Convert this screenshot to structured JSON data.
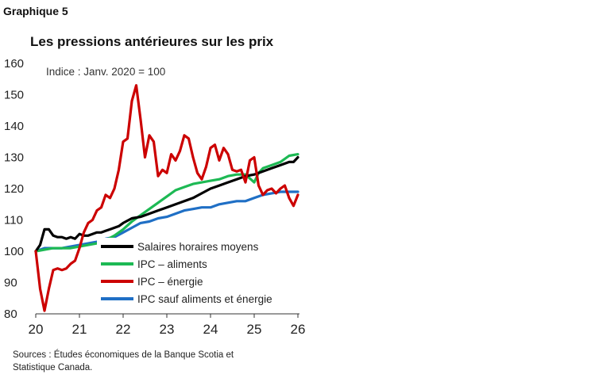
{
  "header": {
    "graph_label": "Graphique 5",
    "title": "Les pressions antérieures sur les prix"
  },
  "source_note": "Sources : Études économiques de la Banque Scotia et Statistique Canada.",
  "chart_data": {
    "type": "line",
    "title": "Les pressions antérieures sur les prix",
    "ylabel": "Indice : Janv. 2020 = 100",
    "ylim": [
      80,
      160
    ],
    "yticks": [
      80,
      90,
      100,
      110,
      120,
      130,
      140,
      150,
      160
    ],
    "xlim": [
      2020,
      2026
    ],
    "xticks": [
      2020,
      2021,
      2022,
      2023,
      2024,
      2025,
      2026
    ],
    "xtick_labels": [
      "20",
      "21",
      "22",
      "23",
      "24",
      "25",
      "26"
    ],
    "grid": false,
    "legend_position": "bottom-right",
    "series": [
      {
        "name": "Salaires horaires moyens",
        "color": "#000000",
        "x": [
          2020.0,
          2020.1,
          2020.2,
          2020.3,
          2020.4,
          2020.5,
          2020.6,
          2020.7,
          2020.8,
          2020.9,
          2021.0,
          2021.1,
          2021.2,
          2021.3,
          2021.4,
          2021.5,
          2021.6,
          2021.7,
          2021.8,
          2021.9,
          2022.0,
          2022.2,
          2022.4,
          2022.6,
          2022.8,
          2023.0,
          2023.2,
          2023.4,
          2023.6,
          2023.8,
          2024.0,
          2024.2,
          2024.4,
          2024.6,
          2024.8,
          2025.0,
          2025.2,
          2025.4,
          2025.6,
          2025.8,
          2025.9,
          2026.0
        ],
        "values": [
          100,
          102,
          107,
          107,
          105,
          104.5,
          104.5,
          104,
          104.5,
          104,
          105.5,
          105,
          105,
          105.5,
          106,
          106,
          106.5,
          107,
          107.5,
          108,
          109,
          110.5,
          111,
          112,
          113,
          114,
          115,
          116,
          117,
          118.5,
          120,
          121,
          122,
          123,
          124,
          124.5,
          125.5,
          126.5,
          127.5,
          128.5,
          128.5,
          130
        ]
      },
      {
        "name": "IPC – aliments",
        "color": "#1db954",
        "x": [
          2020.0,
          2020.2,
          2020.4,
          2020.6,
          2020.8,
          2021.0,
          2021.2,
          2021.4,
          2021.6,
          2021.8,
          2022.0,
          2022.2,
          2022.4,
          2022.6,
          2022.8,
          2023.0,
          2023.2,
          2023.4,
          2023.6,
          2023.8,
          2024.0,
          2024.2,
          2024.4,
          2024.6,
          2024.8,
          2025.0,
          2025.1,
          2025.2,
          2025.4,
          2025.6,
          2025.8,
          2026.0
        ],
        "values": [
          100,
          100.5,
          101,
          101,
          101,
          101.5,
          102,
          102.5,
          103.5,
          105,
          107,
          109.5,
          111.5,
          113.5,
          115.5,
          117.5,
          119.5,
          120.5,
          121.5,
          122,
          122.5,
          123,
          124,
          124.5,
          124.5,
          122,
          125,
          126.5,
          127.5,
          128.5,
          130.5,
          131
        ]
      },
      {
        "name": "IPC – énergie",
        "color": "#cc0000",
        "x": [
          2020.0,
          2020.1,
          2020.2,
          2020.3,
          2020.4,
          2020.5,
          2020.6,
          2020.7,
          2020.8,
          2020.9,
          2021.0,
          2021.1,
          2021.2,
          2021.3,
          2021.4,
          2021.5,
          2021.6,
          2021.7,
          2021.8,
          2021.9,
          2022.0,
          2022.1,
          2022.2,
          2022.3,
          2022.4,
          2022.5,
          2022.6,
          2022.7,
          2022.8,
          2022.9,
          2023.0,
          2023.1,
          2023.2,
          2023.3,
          2023.4,
          2023.5,
          2023.6,
          2023.7,
          2023.8,
          2023.9,
          2024.0,
          2024.1,
          2024.2,
          2024.3,
          2024.4,
          2024.5,
          2024.6,
          2024.7,
          2024.8,
          2024.9,
          2025.0,
          2025.1,
          2025.2,
          2025.3,
          2025.4,
          2025.5,
          2025.6,
          2025.7,
          2025.8,
          2025.9,
          2026.0
        ],
        "values": [
          100,
          88,
          81,
          88,
          94,
          94.5,
          94,
          94.5,
          96,
          97,
          101,
          106,
          109,
          110,
          113,
          114,
          118,
          117,
          120,
          126,
          135,
          136,
          148,
          153,
          142,
          130,
          137,
          135,
          124,
          126,
          125,
          131,
          129,
          132,
          137,
          136,
          130,
          125,
          123,
          127,
          133,
          134,
          129,
          133,
          131,
          126,
          125.5,
          126,
          122,
          129,
          130,
          121,
          118,
          119.5,
          120,
          118.5,
          120,
          121,
          117,
          114.5,
          118
        ]
      },
      {
        "name": "IPC sauf aliments et énergie",
        "color": "#1f6fc5",
        "x": [
          2020.0,
          2020.2,
          2020.4,
          2020.6,
          2020.8,
          2021.0,
          2021.2,
          2021.4,
          2021.6,
          2021.8,
          2022.0,
          2022.2,
          2022.4,
          2022.6,
          2022.8,
          2023.0,
          2023.2,
          2023.4,
          2023.6,
          2023.8,
          2024.0,
          2024.2,
          2024.4,
          2024.6,
          2024.8,
          2025.0,
          2025.2,
          2025.4,
          2025.6,
          2025.8,
          2026.0
        ],
        "values": [
          100,
          101,
          101,
          101,
          101.5,
          102,
          102.5,
          103,
          104,
          104.5,
          106,
          107.5,
          109,
          109.5,
          110.5,
          111,
          112,
          113,
          113.5,
          114,
          114,
          115,
          115.5,
          116,
          116,
          117,
          118,
          118.5,
          119,
          119,
          119
        ]
      }
    ]
  }
}
